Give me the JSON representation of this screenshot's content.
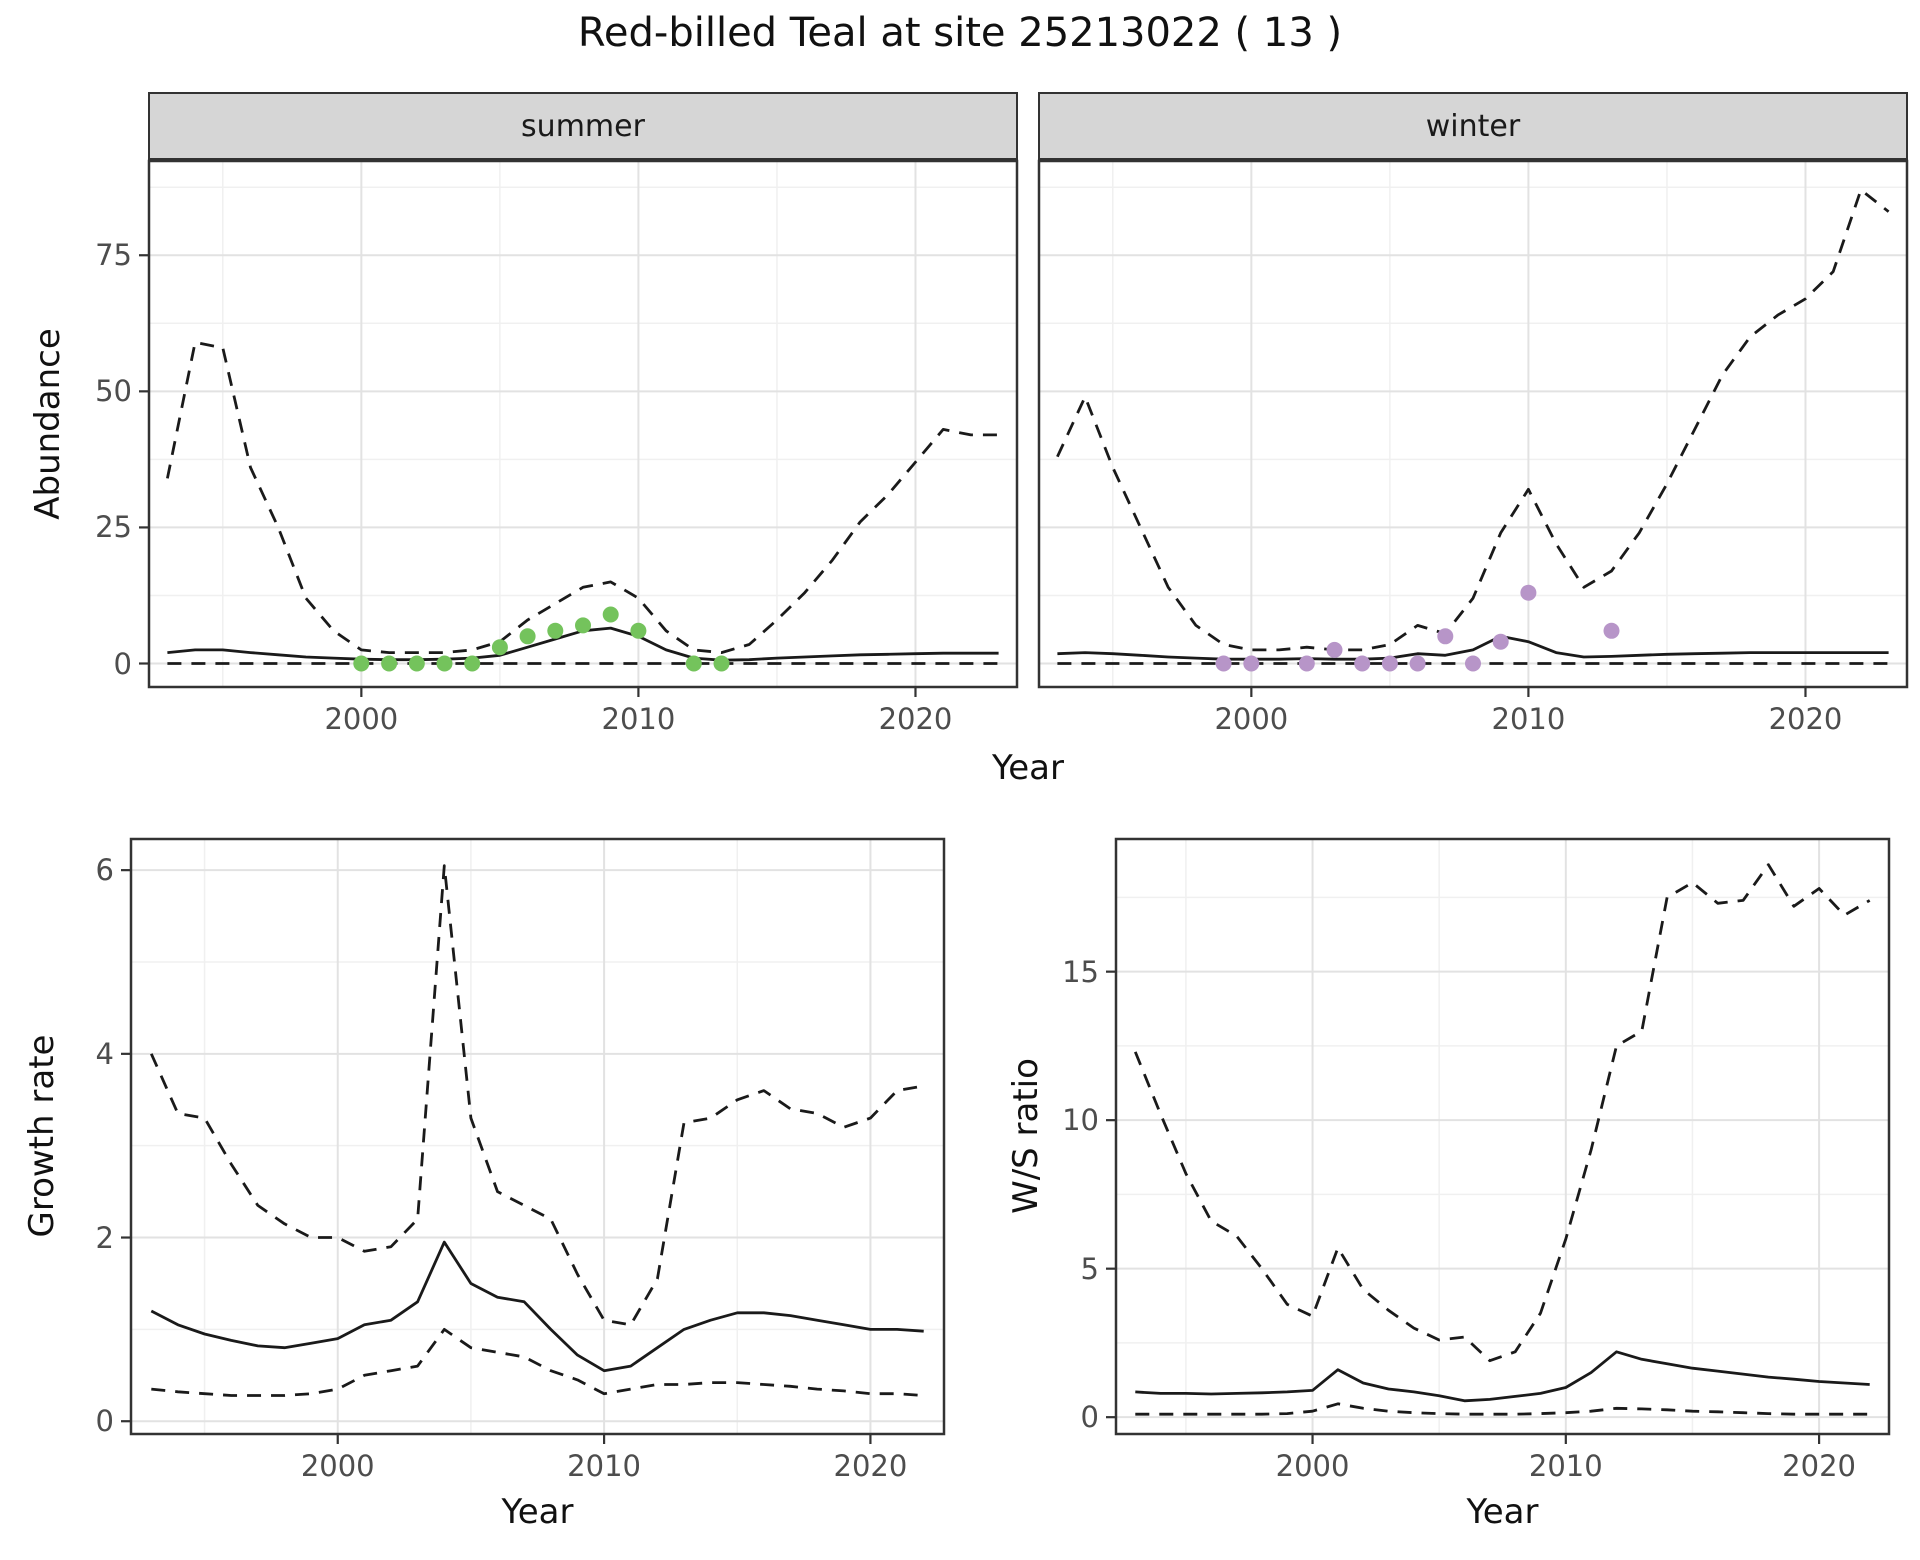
{
  "title": "Red-billed Teal at site 25213022 ( 13 )",
  "line_color": "#1a1a1a",
  "chart_data": [
    {
      "id": "abundance-summer",
      "type": "line",
      "facet": "summer",
      "xlabel": "Year",
      "ylabel": "Abundance",
      "xlim": [
        1992.3,
        2023.7
      ],
      "ylim": [
        -4.5,
        92.5
      ],
      "xticks": [
        2000,
        2010,
        2020
      ],
      "xminor": [
        1995,
        2005,
        2015
      ],
      "yticks": [
        0,
        25,
        50,
        75
      ],
      "yminor": [
        12.5,
        37.5,
        62.5,
        87.5
      ],
      "grid": true,
      "x": [
        1993,
        1994,
        1995,
        1996,
        1997,
        1998,
        1999,
        2000,
        2001,
        2002,
        2003,
        2004,
        2005,
        2006,
        2007,
        2008,
        2009,
        2010,
        2011,
        2012,
        2013,
        2014,
        2015,
        2016,
        2017,
        2018,
        2019,
        2020,
        2021,
        2022,
        2023
      ],
      "series": [
        {
          "name": "upper-ci",
          "style": "dashed",
          "y": [
            34,
            59,
            58,
            36,
            25,
            12,
            6,
            2.5,
            2,
            2,
            2,
            2.5,
            4,
            8,
            11,
            14,
            15,
            12,
            6,
            2.5,
            2,
            3.5,
            8,
            13,
            19,
            26,
            31,
            37,
            43,
            42,
            42
          ]
        },
        {
          "name": "mean",
          "style": "solid",
          "y": [
            2,
            2.5,
            2.5,
            2,
            1.6,
            1.2,
            1,
            0.8,
            0.7,
            0.7,
            0.8,
            1,
            1.5,
            3,
            4.5,
            6,
            6.5,
            5,
            2.5,
            1,
            0.6,
            0.7,
            1,
            1.2,
            1.4,
            1.6,
            1.7,
            1.8,
            1.9,
            1.9,
            1.9
          ]
        },
        {
          "name": "lower-ci",
          "style": "dashed",
          "y": [
            0,
            0,
            0,
            0,
            0,
            0,
            0,
            0,
            0,
            0,
            0,
            0,
            0,
            0,
            0,
            0,
            0,
            0,
            0,
            0,
            0,
            0,
            0,
            0,
            0,
            0,
            0,
            0,
            0,
            0,
            0
          ]
        },
        {
          "name": "observations",
          "style": "points",
          "color": "#74c35c",
          "x": [
            2000,
            2001,
            2002,
            2003,
            2004,
            2005,
            2006,
            2007,
            2008,
            2009,
            2010,
            2012,
            2013
          ],
          "y": [
            0,
            0,
            0,
            0,
            0,
            3,
            5,
            6,
            7,
            9,
            6,
            0,
            0
          ]
        }
      ]
    },
    {
      "id": "abundance-winter",
      "type": "line",
      "facet": "winter",
      "xlabel": "Year",
      "ylabel": "Abundance",
      "xlim": [
        1992.3,
        2023.7
      ],
      "ylim": [
        -4.5,
        92.5
      ],
      "xticks": [
        2000,
        2010,
        2020
      ],
      "xminor": [
        1995,
        2005,
        2015
      ],
      "yticks": [
        0,
        25,
        50,
        75
      ],
      "yminor": [
        12.5,
        37.5,
        62.5,
        87.5
      ],
      "grid": true,
      "x": [
        1993,
        1994,
        1995,
        1996,
        1997,
        1998,
        1999,
        2000,
        2001,
        2002,
        2003,
        2004,
        2005,
        2006,
        2007,
        2008,
        2009,
        2010,
        2011,
        2012,
        2013,
        2014,
        2015,
        2016,
        2017,
        2018,
        2019,
        2020,
        2021,
        2022,
        2023
      ],
      "series": [
        {
          "name": "upper-ci",
          "style": "dashed",
          "y": [
            38,
            49,
            36,
            25,
            14,
            7,
            3.5,
            2.5,
            2.5,
            3,
            2.5,
            2.5,
            3.5,
            7,
            5.5,
            12,
            24,
            32,
            22,
            14,
            17,
            24,
            33,
            43,
            53,
            60,
            64,
            67,
            72,
            87,
            83
          ]
        },
        {
          "name": "mean",
          "style": "solid",
          "y": [
            1.8,
            2,
            1.8,
            1.5,
            1.2,
            1,
            0.8,
            0.8,
            0.8,
            0.9,
            0.8,
            0.8,
            1,
            1.8,
            1.5,
            2.5,
            5,
            4,
            2,
            1.2,
            1.3,
            1.5,
            1.7,
            1.8,
            1.9,
            2,
            2,
            2,
            2,
            2,
            2
          ]
        },
        {
          "name": "lower-ci",
          "style": "dashed",
          "y": [
            0,
            0,
            0,
            0,
            0,
            0,
            0,
            0,
            0,
            0,
            0,
            0,
            0,
            0,
            0,
            0,
            0,
            0,
            0,
            0,
            0,
            0,
            0,
            0,
            0,
            0,
            0,
            0,
            0,
            0,
            0
          ]
        },
        {
          "name": "observations",
          "style": "points",
          "color": "#b795c8",
          "x": [
            1999,
            2000,
            2002,
            2003,
            2004,
            2005,
            2006,
            2007,
            2008,
            2009,
            2010,
            2013
          ],
          "y": [
            0,
            0,
            0,
            2.5,
            0,
            0,
            0,
            5,
            0,
            4,
            13,
            6
          ]
        }
      ]
    },
    {
      "id": "growth-rate",
      "type": "line",
      "facet": "",
      "xlabel": "Year",
      "ylabel": "Growth rate",
      "xlim": [
        1992.2,
        2022.8
      ],
      "ylim": [
        -0.15,
        6.35
      ],
      "xticks": [
        2000,
        2010,
        2020
      ],
      "xminor": [
        1995,
        2005,
        2015
      ],
      "yticks": [
        0,
        2,
        4,
        6
      ],
      "yminor": [
        1,
        3,
        5
      ],
      "grid": true,
      "x": [
        1993,
        1994,
        1995,
        1996,
        1997,
        1998,
        1999,
        2000,
        2001,
        2002,
        2003,
        2004,
        2005,
        2006,
        2007,
        2008,
        2009,
        2010,
        2011,
        2012,
        2013,
        2014,
        2015,
        2016,
        2017,
        2018,
        2019,
        2020,
        2021,
        2022
      ],
      "series": [
        {
          "name": "upper-ci",
          "style": "dashed",
          "y": [
            4,
            3.35,
            3.3,
            2.8,
            2.35,
            2.15,
            2,
            2,
            1.85,
            1.9,
            2.2,
            6.05,
            3.3,
            2.5,
            2.35,
            2.2,
            1.6,
            1.1,
            1.05,
            1.55,
            3.25,
            3.3,
            3.5,
            3.6,
            3.4,
            3.35,
            3.2,
            3.3,
            3.6,
            3.65
          ]
        },
        {
          "name": "mean",
          "style": "solid",
          "y": [
            1.2,
            1.05,
            0.95,
            0.88,
            0.82,
            0.8,
            0.85,
            0.9,
            1.05,
            1.1,
            1.3,
            1.95,
            1.5,
            1.35,
            1.3,
            1.0,
            0.72,
            0.55,
            0.6,
            0.8,
            1.0,
            1.1,
            1.18,
            1.18,
            1.15,
            1.1,
            1.05,
            1.0,
            1.0,
            0.98
          ]
        },
        {
          "name": "lower-ci",
          "style": "dashed",
          "y": [
            0.35,
            0.32,
            0.3,
            0.28,
            0.28,
            0.28,
            0.3,
            0.35,
            0.5,
            0.55,
            0.6,
            1.0,
            0.8,
            0.75,
            0.7,
            0.55,
            0.45,
            0.3,
            0.35,
            0.4,
            0.4,
            0.42,
            0.42,
            0.4,
            0.38,
            0.35,
            0.33,
            0.3,
            0.3,
            0.28
          ]
        }
      ]
    },
    {
      "id": "ws-ratio",
      "type": "line",
      "facet": "",
      "xlabel": "Year",
      "ylabel": "W/S ratio",
      "xlim": [
        1992.2,
        2022.8
      ],
      "ylim": [
        -0.6,
        19.5
      ],
      "xticks": [
        2000,
        2010,
        2020
      ],
      "xminor": [
        1995,
        2005,
        2015
      ],
      "yticks": [
        0,
        5,
        10,
        15
      ],
      "yminor": [
        2.5,
        7.5,
        12.5,
        17.5
      ],
      "grid": true,
      "x": [
        1993,
        1994,
        1995,
        1996,
        1997,
        1998,
        1999,
        2000,
        2001,
        2002,
        2003,
        2004,
        2005,
        2006,
        2007,
        2008,
        2009,
        2010,
        2011,
        2012,
        2013,
        2014,
        2015,
        2016,
        2017,
        2018,
        2019,
        2020,
        2021,
        2022
      ],
      "series": [
        {
          "name": "upper-ci",
          "style": "dashed",
          "y": [
            12.3,
            10.2,
            8.2,
            6.6,
            6.1,
            5.0,
            3.8,
            3.4,
            5.7,
            4.3,
            3.6,
            3.0,
            2.6,
            2.7,
            1.9,
            2.2,
            3.5,
            6.0,
            9.0,
            12.5,
            13.0,
            17.5,
            18.0,
            17.3,
            17.4,
            18.6,
            17.2,
            17.8,
            16.9,
            17.4
          ]
        },
        {
          "name": "mean",
          "style": "solid",
          "y": [
            0.85,
            0.8,
            0.8,
            0.78,
            0.8,
            0.82,
            0.85,
            0.9,
            1.6,
            1.15,
            0.95,
            0.85,
            0.72,
            0.55,
            0.6,
            0.7,
            0.8,
            1.0,
            1.5,
            2.2,
            1.95,
            1.8,
            1.65,
            1.55,
            1.45,
            1.35,
            1.28,
            1.2,
            1.15,
            1.1
          ]
        },
        {
          "name": "lower-ci",
          "style": "dashed",
          "y": [
            0.1,
            0.1,
            0.1,
            0.1,
            0.1,
            0.1,
            0.12,
            0.2,
            0.45,
            0.3,
            0.2,
            0.15,
            0.12,
            0.1,
            0.1,
            0.1,
            0.12,
            0.15,
            0.2,
            0.3,
            0.28,
            0.25,
            0.2,
            0.18,
            0.15,
            0.12,
            0.1,
            0.1,
            0.1,
            0.1
          ]
        }
      ]
    }
  ]
}
